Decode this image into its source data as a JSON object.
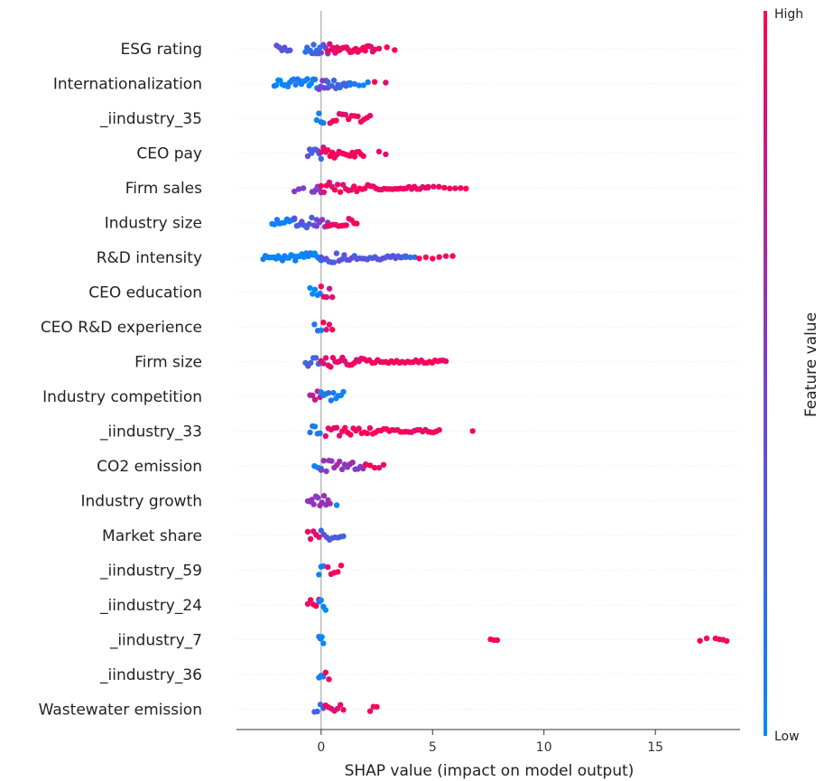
{
  "chart_data": {
    "type": "scatter",
    "subtype": "shap-beeswarm",
    "xlabel": "SHAP value (impact on model output)",
    "xlim": [
      -3.8,
      18.8
    ],
    "xticks": [
      0,
      5,
      10,
      15
    ],
    "colorbar": {
      "label": "Feature value",
      "high_label": "High",
      "low_label": "Low",
      "high_color": "#ff0052",
      "low_color": "#008bfb",
      "position": "right"
    },
    "grid": false,
    "features": [
      {
        "name": "ESG rating",
        "segments": [
          {
            "from": -2.0,
            "to": -1.4,
            "v": 0.35,
            "n": 6
          },
          {
            "from": -0.7,
            "to": -0.05,
            "v": 0.2,
            "n": 10
          },
          {
            "from": 0.0,
            "to": 0.3,
            "v": 0.45,
            "n": 4
          },
          {
            "from": 0.3,
            "to": 2.4,
            "v": 0.95,
            "n": 26
          },
          {
            "from": 2.6,
            "to": 3.3,
            "v": 0.95,
            "n": 3
          }
        ]
      },
      {
        "name": "Internationalization",
        "segments": [
          {
            "from": -2.1,
            "to": -0.1,
            "v": 0.05,
            "n": 24
          },
          {
            "from": -0.1,
            "to": 0.3,
            "v": 0.45,
            "n": 6
          },
          {
            "from": 0.3,
            "to": 1.3,
            "v": 0.25,
            "n": 12
          },
          {
            "from": 1.3,
            "to": 2.1,
            "v": 0.1,
            "n": 5
          },
          {
            "from": 2.4,
            "to": 2.9,
            "v": 0.95,
            "n": 2
          }
        ]
      },
      {
        "name": "_iindustry_35",
        "segments": [
          {
            "from": -0.2,
            "to": 0.1,
            "v": 0.05,
            "n": 4
          },
          {
            "from": 0.4,
            "to": 2.2,
            "v": 0.95,
            "n": 14
          }
        ]
      },
      {
        "name": "CEO pay",
        "segments": [
          {
            "from": -0.6,
            "to": 0.0,
            "v": 0.3,
            "n": 8
          },
          {
            "from": 0.0,
            "to": 1.9,
            "v": 0.92,
            "n": 20
          },
          {
            "from": 2.6,
            "to": 2.9,
            "v": 0.95,
            "n": 2
          }
        ]
      },
      {
        "name": "Firm sales",
        "segments": [
          {
            "from": -1.2,
            "to": -0.8,
            "v": 0.5,
            "n": 3
          },
          {
            "from": -0.4,
            "to": 0.0,
            "v": 0.55,
            "n": 6
          },
          {
            "from": 0.0,
            "to": 4.8,
            "v": 0.95,
            "n": 40
          },
          {
            "from": 4.8,
            "to": 6.5,
            "v": 0.95,
            "n": 8
          }
        ]
      },
      {
        "name": "Industry size",
        "segments": [
          {
            "from": -2.2,
            "to": -1.2,
            "v": 0.1,
            "n": 10
          },
          {
            "from": -1.2,
            "to": -0.2,
            "v": 0.35,
            "n": 10
          },
          {
            "from": -0.2,
            "to": 0.3,
            "v": 0.5,
            "n": 5
          },
          {
            "from": 0.3,
            "to": 1.6,
            "v": 0.95,
            "n": 12
          }
        ]
      },
      {
        "name": "R&D intensity",
        "segments": [
          {
            "from": -2.6,
            "to": 0.0,
            "v": 0.05,
            "n": 28
          },
          {
            "from": 0.0,
            "to": 3.8,
            "v": 0.35,
            "n": 34
          },
          {
            "from": 3.8,
            "to": 4.2,
            "v": 0.2,
            "n": 3
          },
          {
            "from": 4.4,
            "to": 5.9,
            "v": 0.95,
            "n": 6
          }
        ]
      },
      {
        "name": "CEO education",
        "segments": [
          {
            "from": -0.5,
            "to": -0.05,
            "v": 0.05,
            "n": 5
          },
          {
            "from": 0.0,
            "to": 0.5,
            "v": 0.9,
            "n": 5
          }
        ]
      },
      {
        "name": "CEO R&D experience",
        "segments": [
          {
            "from": -0.3,
            "to": 0.0,
            "v": 0.15,
            "n": 3
          },
          {
            "from": 0.1,
            "to": 0.5,
            "v": 0.95,
            "n": 4
          }
        ]
      },
      {
        "name": "Firm size",
        "segments": [
          {
            "from": -0.7,
            "to": 0.0,
            "v": 0.25,
            "n": 7
          },
          {
            "from": 0.0,
            "to": 1.8,
            "v": 0.92,
            "n": 18
          },
          {
            "from": 1.8,
            "to": 5.6,
            "v": 0.95,
            "n": 32
          }
        ]
      },
      {
        "name": "Industry competition",
        "segments": [
          {
            "from": -0.5,
            "to": -0.05,
            "v": 0.75,
            "n": 5
          },
          {
            "from": 0.0,
            "to": 1.0,
            "v": 0.1,
            "n": 10
          }
        ]
      },
      {
        "name": "_iindustry_33",
        "segments": [
          {
            "from": -0.5,
            "to": -0.05,
            "v": 0.1,
            "n": 5
          },
          {
            "from": 0.2,
            "to": 5.3,
            "v": 0.95,
            "n": 42
          },
          {
            "from": 6.8,
            "to": 7.0,
            "v": 0.95,
            "n": 1
          }
        ]
      },
      {
        "name": "CO2 emission",
        "segments": [
          {
            "from": -0.3,
            "to": 0.0,
            "v": 0.05,
            "n": 3
          },
          {
            "from": 0.0,
            "to": 2.0,
            "v": 0.6,
            "n": 18
          },
          {
            "from": 2.0,
            "to": 2.8,
            "v": 0.95,
            "n": 5
          }
        ]
      },
      {
        "name": "Industry growth",
        "segments": [
          {
            "from": -0.6,
            "to": 0.4,
            "v": 0.6,
            "n": 12
          },
          {
            "from": 0.7,
            "to": 0.8,
            "v": 0.1,
            "n": 1
          }
        ]
      },
      {
        "name": "Market share",
        "segments": [
          {
            "from": -0.6,
            "to": -0.1,
            "v": 0.9,
            "n": 5
          },
          {
            "from": 0.0,
            "to": 1.0,
            "v": 0.3,
            "n": 9
          }
        ]
      },
      {
        "name": "_iindustry_59",
        "segments": [
          {
            "from": -0.1,
            "to": 0.1,
            "v": 0.05,
            "n": 3
          },
          {
            "from": 0.3,
            "to": 0.9,
            "v": 0.95,
            "n": 5
          }
        ]
      },
      {
        "name": "_iindustry_24",
        "segments": [
          {
            "from": -0.6,
            "to": -0.1,
            "v": 0.95,
            "n": 5
          },
          {
            "from": -0.1,
            "to": 0.2,
            "v": 0.05,
            "n": 4
          }
        ]
      },
      {
        "name": "_iindustry_7",
        "segments": [
          {
            "from": -0.1,
            "to": 0.1,
            "v": 0.05,
            "n": 4
          },
          {
            "from": 7.6,
            "to": 7.9,
            "v": 0.95,
            "n": 3
          },
          {
            "from": 17.0,
            "to": 17.3,
            "v": 0.95,
            "n": 2
          },
          {
            "from": 17.7,
            "to": 18.2,
            "v": 0.95,
            "n": 4
          }
        ]
      },
      {
        "name": "_iindustry_36",
        "segments": [
          {
            "from": -0.1,
            "to": 0.1,
            "v": 0.05,
            "n": 3
          },
          {
            "from": 0.2,
            "to": 0.35,
            "v": 0.95,
            "n": 2
          }
        ]
      },
      {
        "name": "Wastewater emission",
        "segments": [
          {
            "from": -0.3,
            "to": 0.1,
            "v": 0.2,
            "n": 4
          },
          {
            "from": 0.2,
            "to": 1.0,
            "v": 0.95,
            "n": 7
          },
          {
            "from": 2.2,
            "to": 2.5,
            "v": 0.95,
            "n": 3
          }
        ]
      }
    ]
  }
}
